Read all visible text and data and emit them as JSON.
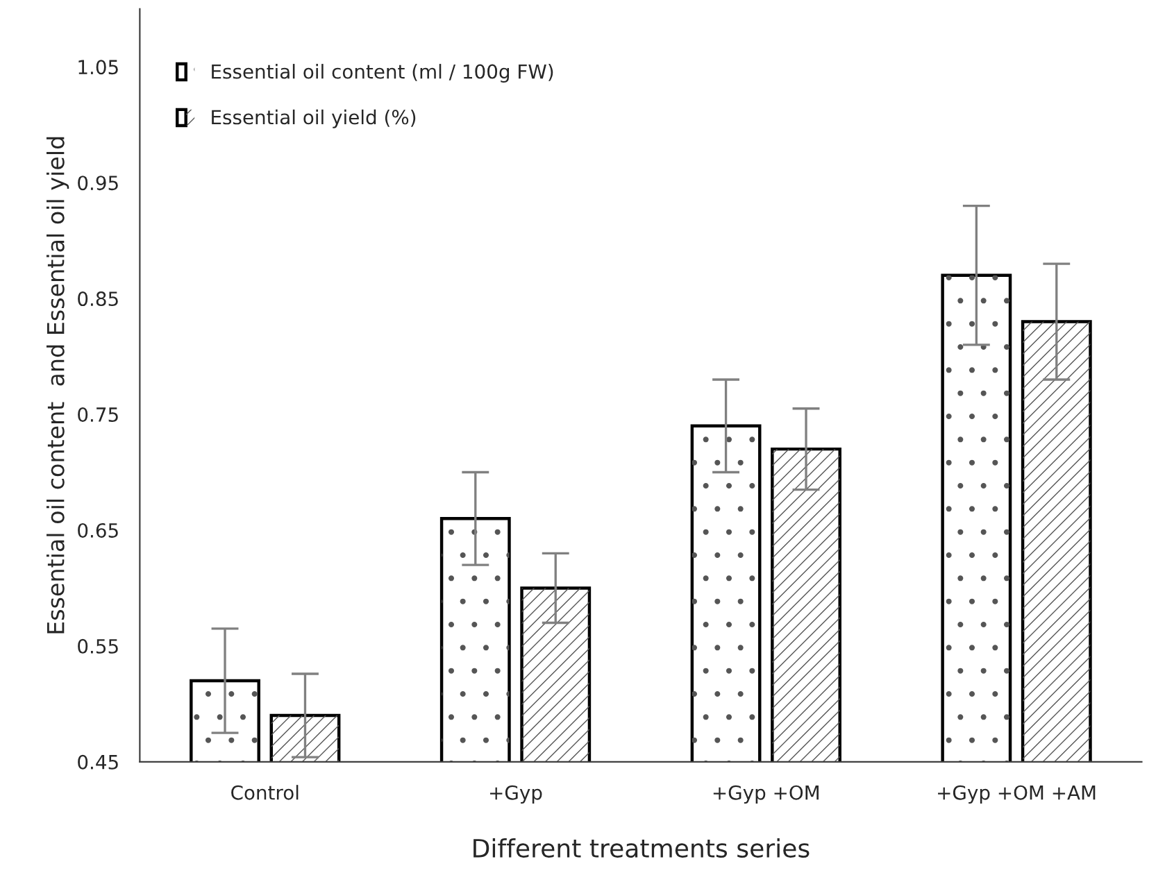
{
  "chart_data": {
    "type": "bar",
    "xlabel": "Different treatments series",
    "ylabel": "Essential oil content  and Essential oil yield",
    "categories": [
      "Control",
      "+Gyp",
      "+Gyp +OM",
      "+Gyp +OM +AM"
    ],
    "series": [
      {
        "name": "Essential oil content (ml / 100g FW)",
        "color": "#ffffff",
        "values": [
          0.52,
          0.66,
          0.74,
          0.87
        ],
        "errors": [
          0.045,
          0.04,
          0.04,
          0.06
        ]
      },
      {
        "name": "Essential oil yield (%)",
        "color": "#ffffff",
        "values": [
          0.49,
          0.6,
          0.72,
          0.83
        ],
        "errors": [
          0.036,
          0.03,
          0.035,
          0.05
        ]
      }
    ],
    "ylim": [
      0.45,
      1.1
    ],
    "yticks": [
      {
        "value": 0.45,
        "label": "0.45"
      },
      {
        "value": 0.55,
        "label": "0.55"
      },
      {
        "value": 0.65,
        "label": "0.65"
      },
      {
        "value": 0.75,
        "label": "0.75"
      },
      {
        "value": 0.85,
        "label": "0.85"
      },
      {
        "value": 0.95,
        "label": "0.95"
      },
      {
        "value": 1.05,
        "label": "1.05"
      }
    ],
    "grid": false,
    "legend": "top left"
  }
}
